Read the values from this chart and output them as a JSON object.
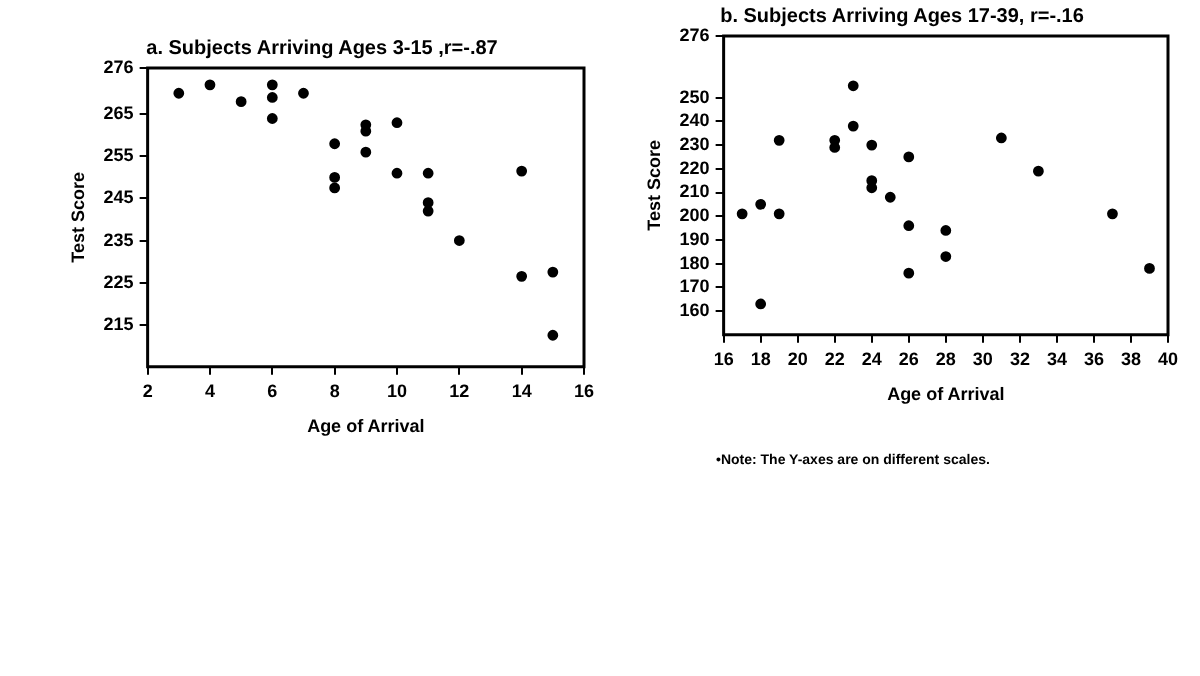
{
  "chart_data": [
    {
      "type": "scatter",
      "title": "a. Subjects Arriving Ages 3-15 ,r=-.87",
      "xlabel": "Age of Arrival",
      "ylabel": "Test Score",
      "marker": "circle",
      "grid": false,
      "legend": false,
      "xlim": [
        2,
        16
      ],
      "xticks": [
        2,
        4,
        6,
        8,
        10,
        12,
        14,
        16
      ],
      "ylim": [
        205,
        276
      ],
      "yticks": [
        215,
        225,
        235,
        245,
        255,
        265,
        276
      ],
      "series": [
        {
          "color": "#000000",
          "x": [
            3,
            4,
            5,
            6,
            6,
            6,
            7,
            8,
            8,
            8,
            9,
            9,
            9,
            10,
            10,
            11,
            11,
            11,
            12,
            14,
            14,
            15,
            15
          ],
          "values": [
            270,
            272,
            268,
            272,
            269,
            264,
            270,
            258,
            250,
            247.5,
            262.5,
            261,
            256,
            263,
            251,
            251,
            244,
            242,
            235,
            251.5,
            226.5,
            227.5,
            212.5
          ]
        }
      ]
    },
    {
      "type": "scatter",
      "title": "b. Subjects Arriving Ages 17-39, r=-.16",
      "xlabel": "Age of Arrival",
      "ylabel": "Test Score",
      "marker": "circle",
      "grid": false,
      "legend": false,
      "xlim": [
        16,
        40
      ],
      "xticks": [
        16,
        18,
        20,
        22,
        24,
        26,
        28,
        30,
        32,
        34,
        36,
        38,
        40
      ],
      "ylim": [
        150,
        276
      ],
      "yticks": [
        160,
        170,
        180,
        190,
        200,
        210,
        220,
        230,
        240,
        250,
        276
      ],
      "annotations": [
        "•Note: The Y-axes are on different scales."
      ],
      "series": [
        {
          "color": "#000000",
          "x": [
            17,
            18,
            18,
            19,
            19,
            22,
            22,
            23,
            23,
            24,
            24,
            24,
            25,
            26,
            26,
            26,
            28,
            28,
            31,
            33,
            37,
            39
          ],
          "values": [
            201,
            205,
            163,
            232,
            201,
            232,
            229,
            255,
            238,
            230,
            215,
            212,
            208,
            225,
            196,
            176,
            194,
            183,
            233,
            219,
            201,
            178
          ]
        }
      ]
    }
  ]
}
